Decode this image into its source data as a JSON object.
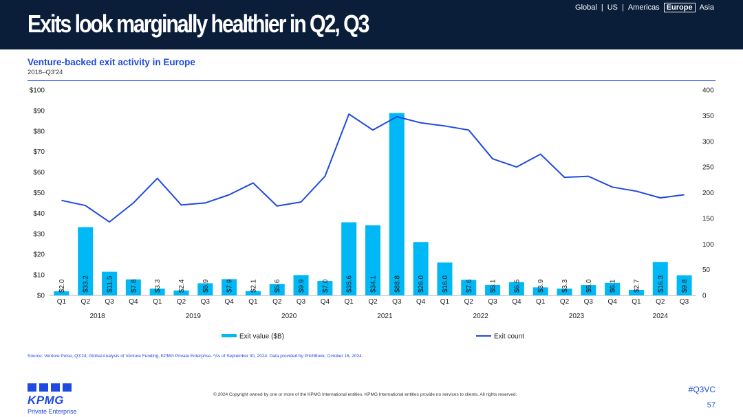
{
  "header": {
    "title": "Exits look marginally healthier in Q2, Q3",
    "regions": [
      "Global",
      "US",
      "Americas",
      "Europe",
      "Asia"
    ],
    "active_region": "Europe"
  },
  "chart_title": "Venture-backed exit activity in Europe",
  "chart_subtitle": "2018–Q3'24",
  "chart_data": {
    "type": "bar",
    "categories": [
      "Q1",
      "Q2",
      "Q3",
      "Q4",
      "Q1",
      "Q2",
      "Q3",
      "Q4",
      "Q1",
      "Q2",
      "Q3",
      "Q4",
      "Q1",
      "Q2",
      "Q3",
      "Q4",
      "Q1",
      "Q2",
      "Q3",
      "Q4",
      "Q1",
      "Q2",
      "Q3",
      "Q4",
      "Q1",
      "Q2",
      "Q3"
    ],
    "years": [
      "2018",
      "2019",
      "2020",
      "2021",
      "2022",
      "2023",
      "2024"
    ],
    "series": [
      {
        "name": "Exit value ($B)",
        "type": "bar",
        "axis": "left",
        "color": "#00b8f5",
        "values": [
          2.0,
          33.2,
          11.5,
          7.8,
          3.3,
          2.4,
          5.9,
          7.9,
          2.1,
          5.6,
          9.9,
          7.0,
          35.6,
          34.1,
          88.8,
          26.0,
          16.0,
          7.6,
          5.1,
          6.5,
          3.9,
          3.3,
          5.0,
          6.1,
          2.7,
          16.3,
          9.8
        ],
        "labels": [
          "$2.0",
          "$33.2",
          "$11.5",
          "$7.8",
          "$3.3",
          "$2.4",
          "$5.9",
          "$7.9",
          "$2.1",
          "$5.6",
          "$9.9",
          "$7.0",
          "$35.6",
          "$34.1",
          "$88.8",
          "$26.0",
          "$16.0",
          "$7.6",
          "$5.1",
          "$6.5",
          "$3.9",
          "$3.3",
          "$5.0",
          "$6.1",
          "$2.7",
          "$16.3",
          "$9.8"
        ]
      },
      {
        "name": "Exit count",
        "type": "line",
        "axis": "right",
        "color": "#1e49e2",
        "values": [
          185,
          175,
          143,
          180,
          228,
          176,
          180,
          196,
          219,
          174,
          182,
          232,
          353,
          322,
          348,
          336,
          330,
          322,
          266,
          250,
          275,
          230,
          232,
          211,
          203,
          190,
          196
        ]
      }
    ],
    "y_left": {
      "min": 0,
      "max": 100,
      "ticks": [
        "$0",
        "$10",
        "$20",
        "$30",
        "$40",
        "$50",
        "$60",
        "$70",
        "$80",
        "$90",
        "$100"
      ]
    },
    "y_right": {
      "min": 0,
      "max": 400,
      "ticks": [
        "0",
        "50",
        "100",
        "150",
        "200",
        "250",
        "300",
        "350",
        "400"
      ]
    },
    "legend": {
      "position": "bottom",
      "items": [
        "Exit value ($B)",
        "Exit count"
      ]
    }
  },
  "source": "Source: Venture Pulse, Q3'24, Global Analysis of Venture Funding, KPMG Private Enterprise. *As of September 30, 2024. Data provided by PitchBook, October 16, 2024.",
  "copyright": "© 2024 Copyright owned by one or more of the KPMG International entities. KPMG International entities provide no services to clients. All rights reserved.",
  "logo": {
    "wordmark": "KPMG",
    "sub": "Private Enterprise"
  },
  "hashtag": "#Q3VC",
  "page_number": "57",
  "colors": {
    "header_bg": "#0b1e39",
    "accent": "#1e49e2",
    "bar": "#00b8f5"
  }
}
